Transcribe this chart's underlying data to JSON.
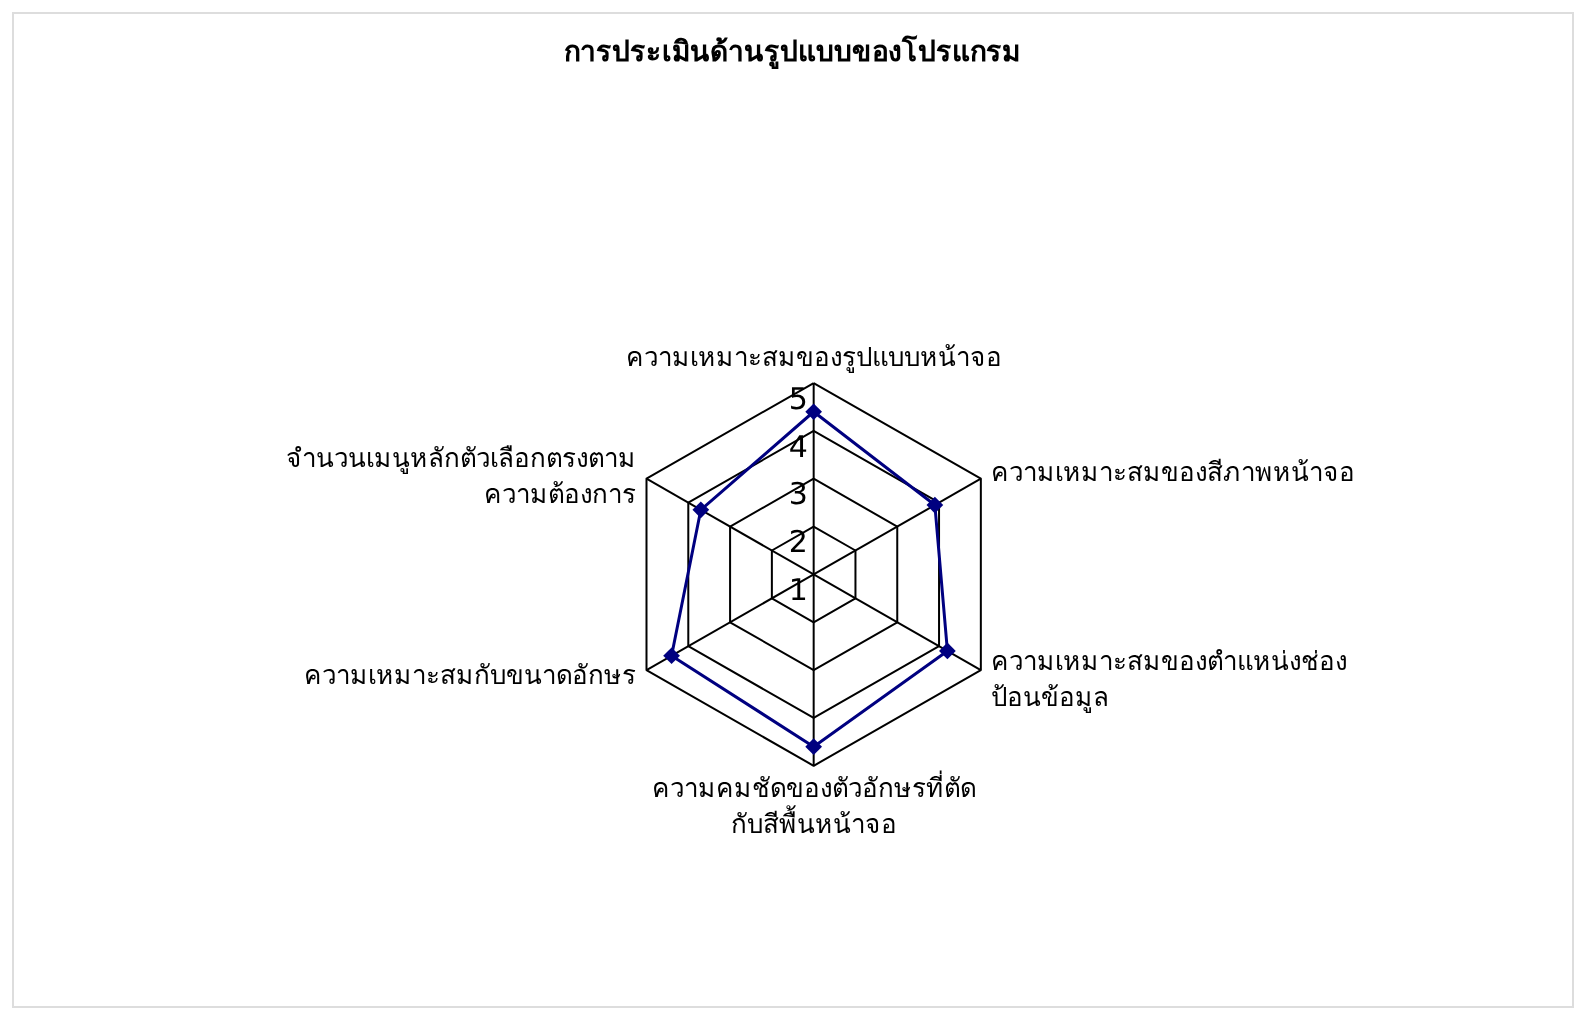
{
  "chart_data": {
    "type": "radar",
    "title": "การประเมินด้านรูปแบบของโปรแกรม",
    "categories": [
      "ความเหมาะสมของรูปแบบหน้าจอ",
      "ความเหมาะสมของสีภาพหน้าจอ",
      "ความเหมาะสมของตำแหน่งช่อง\nป้อนข้อมูล",
      "ความคมชัดของตัวอักษรที่ตัด\nกับสีพื้นหน้าจอ",
      "ความเหมาะสมกับขนาดอักษร",
      "จำนวนเมนูหลักตัวเลือกตรงตาม\nความต้องการ"
    ],
    "series": [
      {
        "color": "#000080",
        "values": [
          4.4,
          3.9,
          4.2,
          4.6,
          4.4,
          3.7
        ]
      }
    ],
    "ylim": [
      1,
      5
    ],
    "yticks": [
      1,
      2,
      3,
      4,
      5
    ],
    "marker": "diamond",
    "grid": true
  }
}
